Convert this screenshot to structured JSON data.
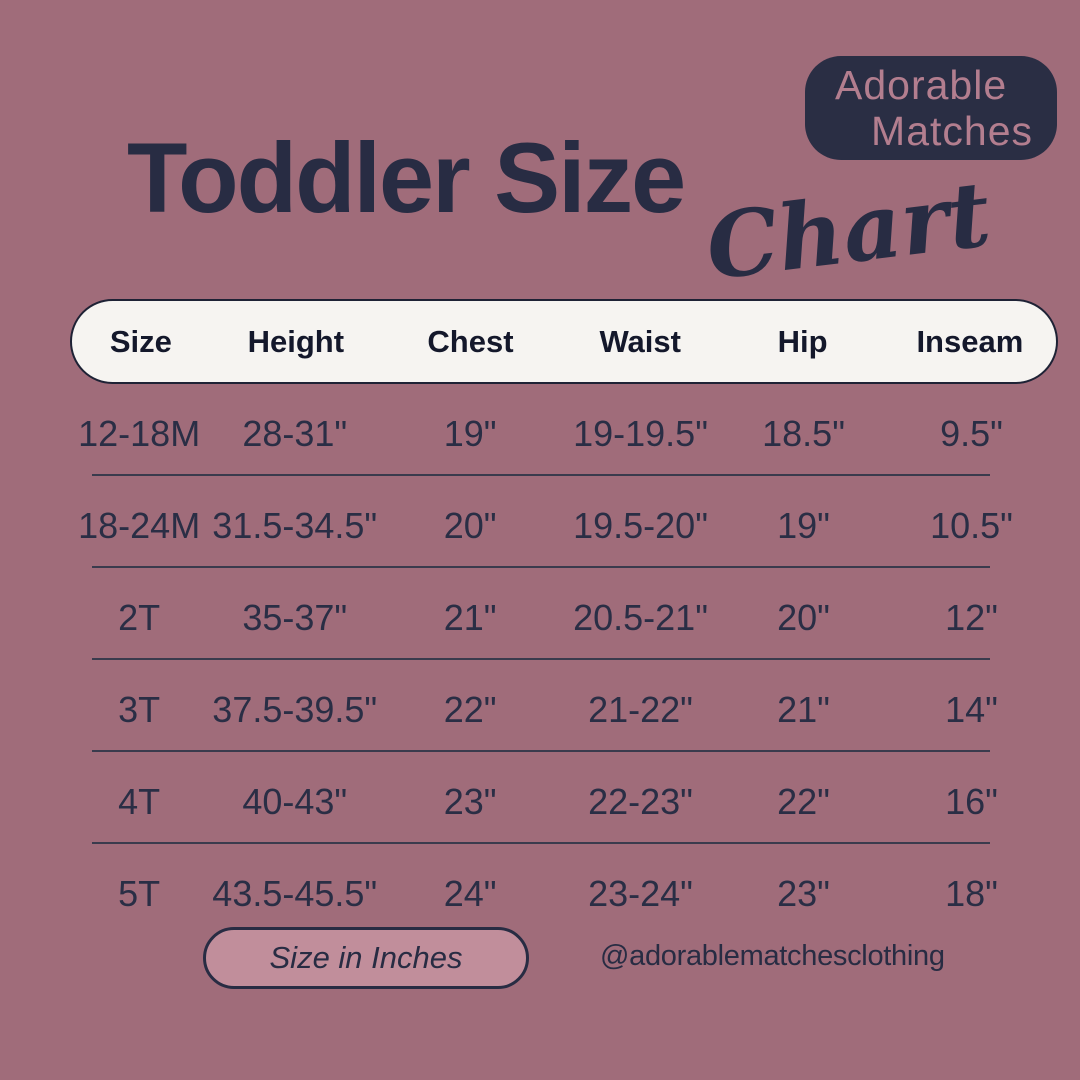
{
  "logo": {
    "line1": "Adorable",
    "line2": "Matches"
  },
  "title": {
    "main": "Toddler Size",
    "script": "Chart"
  },
  "chart_data": {
    "type": "table",
    "title": "Toddler Size Chart",
    "columns": [
      "Size",
      "Height",
      "Chest",
      "Waist",
      "Hip",
      "Inseam"
    ],
    "rows": [
      [
        "12-18M",
        "28-31\"",
        "19\"",
        "19-19.5\"",
        "18.5\"",
        "9.5\""
      ],
      [
        "18-24M",
        "31.5-34.5\"",
        "20\"",
        "19.5-20\"",
        "19\"",
        "10.5\""
      ],
      [
        "2T",
        "35-37\"",
        "21\"",
        "20.5-21\"",
        "20\"",
        "12\""
      ],
      [
        "3T",
        "37.5-39.5\"",
        "22\"",
        "21-22\"",
        "21\"",
        "14\""
      ],
      [
        "4T",
        "40-43\"",
        "23\"",
        "22-23\"",
        "22\"",
        "16\""
      ],
      [
        "5T",
        "43.5-45.5\"",
        "24\"",
        "23-24\"",
        "23\"",
        "18\""
      ]
    ],
    "units": "inches"
  },
  "footer": {
    "units_badge": "Size in Inches",
    "handle": "@adorablematchesclothing"
  },
  "colors": {
    "background": "#A06C7A",
    "navy": "#282C43",
    "logo_background": "#2A2E44",
    "logo_text": "#B37E8F",
    "header_pill_background": "#F6F4F1",
    "badge_background": "#C18E9B"
  }
}
